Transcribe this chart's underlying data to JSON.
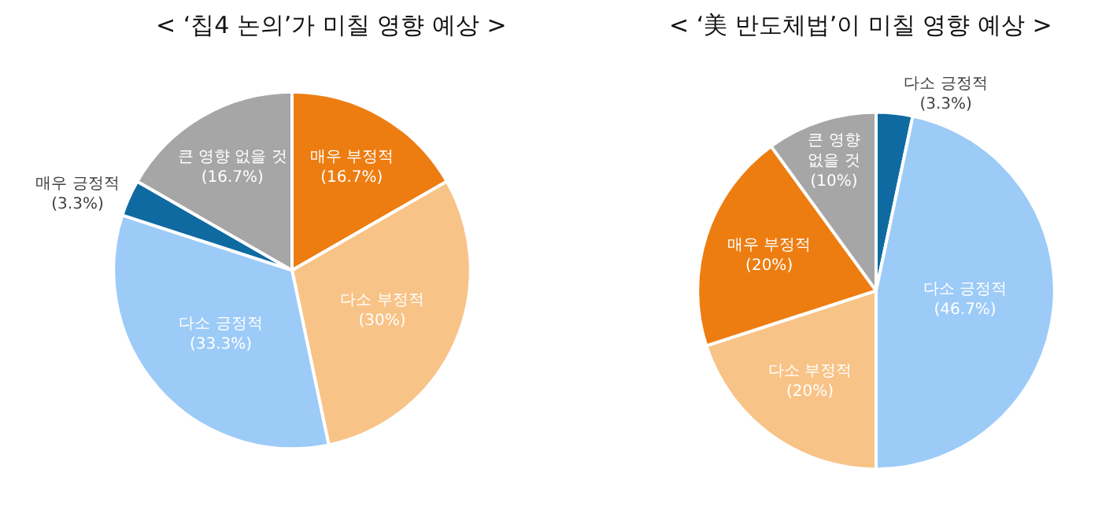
{
  "chart_data": [
    {
      "type": "pie",
      "title": "< ‘칩4 논의’가 미칠 영향 예상 >",
      "categories": [
        "매우 부정적",
        "다소 부정적",
        "다소 긍정적",
        "매우 긍정적",
        "큰 영향 없을 것"
      ],
      "values": [
        16.7,
        30,
        33.3,
        3.3,
        16.7
      ],
      "value_labels": [
        "(16.7%)",
        "(30%)",
        "(33.3%)",
        "(3.3%)",
        "(16.7%)"
      ],
      "colors": [
        "#ed7d11",
        "#f8c387",
        "#9dcbf7",
        "#0f6aa1",
        "#a6a6a6"
      ],
      "legend": false
    },
    {
      "type": "pie",
      "title": "< ‘美 반도체법’이 미칠 영향 예상 >",
      "categories": [
        "다소 긍정적",
        "다소 긍정적",
        "다소 부정적",
        "매우 부정적",
        "큰 영향 없을 것"
      ],
      "values": [
        3.3,
        46.7,
        20,
        20,
        10
      ],
      "value_labels": [
        "(3.3%)",
        "(46.7%)",
        "(20%)",
        "(20%)",
        "(10%)"
      ],
      "colors": [
        "#0f6aa1",
        "#9dcbf7",
        "#f8c387",
        "#ed7d11",
        "#a6a6a6"
      ],
      "legend": false
    }
  ]
}
